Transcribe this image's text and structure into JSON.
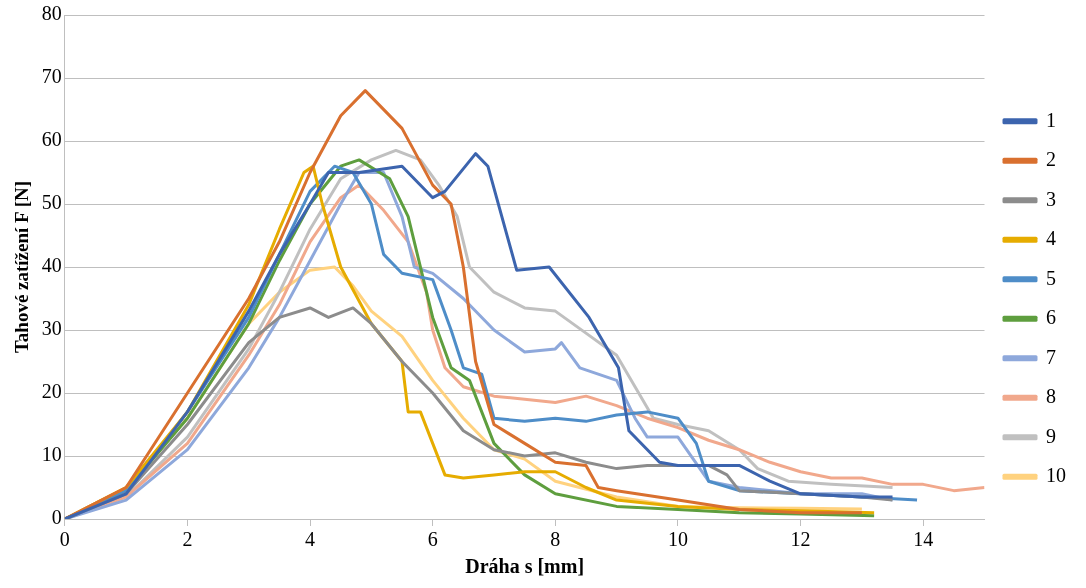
{
  "chart_data": {
    "type": "line",
    "xlabel": "Dráha s [mm]",
    "ylabel": "Tahové zatížení F [N]",
    "xlim": [
      0,
      15
    ],
    "xticks": [
      0,
      2,
      4,
      6,
      8,
      10,
      12,
      14
    ],
    "ylim": [
      0,
      80
    ],
    "yticks": [
      0,
      10,
      20,
      30,
      40,
      50,
      60,
      70,
      80
    ],
    "grid": "y",
    "legend": "right",
    "marker": "none",
    "line_style": "solid",
    "series": [
      {
        "name": "1",
        "color": "#3c64ae",
        "x": [
          0,
          1,
          2,
          3,
          3.5,
          4,
          4.3,
          4.8,
          5.5,
          6,
          6.2,
          6.7,
          6.9,
          7.37,
          7.9,
          8.55,
          9.03,
          9.2,
          9.7,
          10,
          10.5,
          11,
          11.5,
          12,
          13,
          13.5
        ],
        "values": [
          0,
          4,
          17,
          33,
          42,
          50,
          55,
          55,
          56,
          51,
          52,
          58,
          56,
          39.5,
          40,
          32,
          24,
          14,
          9,
          8.5,
          8.5,
          8.5,
          6,
          4,
          3.5,
          3.5
        ]
      },
      {
        "name": "2",
        "color": "#d9702f",
        "x": [
          0,
          1,
          2,
          3,
          3.5,
          4,
          4.5,
          4.9,
          5.5,
          6,
          6.3,
          6.5,
          6.7,
          7,
          7.5,
          8,
          8.5,
          8.7,
          9,
          10,
          11,
          12,
          13
        ],
        "values": [
          0,
          5,
          20,
          35,
          44,
          55,
          64,
          68,
          62,
          53,
          50,
          40,
          25,
          15,
          12,
          9,
          8.5,
          5,
          4.5,
          3,
          1.5,
          1,
          1
        ]
      },
      {
        "name": "3",
        "color": "#8c8c8c",
        "x": [
          0,
          1,
          2,
          3,
          3.5,
          4,
          4.3,
          4.7,
          5,
          5.5,
          6,
          6.5,
          7,
          7.5,
          8,
          8.5,
          9,
          9.5,
          10,
          10.5,
          10.8,
          11,
          12,
          13,
          13.5
        ],
        "values": [
          0,
          4,
          15,
          28,
          32,
          33.5,
          32,
          33.5,
          31,
          25,
          20,
          14,
          11,
          10,
          10.5,
          9,
          8,
          8.5,
          8.5,
          8.5,
          7,
          4.5,
          4,
          3.5,
          3
        ]
      },
      {
        "name": "4",
        "color": "#e6ac00",
        "x": [
          0,
          1,
          2,
          3,
          3.5,
          3.9,
          4.05,
          4.2,
          4.5,
          5,
          5.5,
          5.6,
          5.8,
          6,
          6.2,
          6.5,
          7,
          7.5,
          8,
          8.5,
          9,
          10,
          11,
          12,
          13.2
        ],
        "values": [
          0,
          5,
          17,
          34,
          46,
          55,
          56,
          50,
          40,
          31,
          25,
          17,
          17,
          12,
          7,
          6.5,
          7,
          7.5,
          7.5,
          5,
          3,
          2,
          1.5,
          1.3,
          1
        ]
      },
      {
        "name": "5",
        "color": "#4e8dc8",
        "x": [
          0,
          1,
          2,
          3,
          3.5,
          4,
          4.4,
          4.7,
          5,
          5.2,
          5.5,
          6,
          6.3,
          6.5,
          6.8,
          7,
          7.5,
          8,
          8.5,
          9,
          9.5,
          10,
          10.3,
          10.5,
          11,
          12,
          13,
          13.9
        ],
        "values": [
          0,
          4.5,
          17,
          32,
          42,
          52,
          56,
          55,
          50,
          42,
          39,
          38,
          30,
          24,
          23,
          16,
          15.5,
          16,
          15.5,
          16.5,
          17,
          16,
          12,
          6,
          4.5,
          4,
          3.5,
          3
        ]
      },
      {
        "name": "6",
        "color": "#5e9e3e",
        "x": [
          0,
          1,
          2,
          3,
          3.5,
          4,
          4.5,
          4.8,
          5.3,
          5.6,
          6,
          6.3,
          6.6,
          6.8,
          7,
          7.5,
          8,
          9,
          10,
          11,
          12,
          13.2
        ],
        "values": [
          0,
          4.5,
          16,
          31,
          41,
          50,
          56,
          57,
          54,
          48,
          32,
          24,
          22,
          17,
          12,
          7,
          4,
          2,
          1.5,
          1,
          0.8,
          0.5
        ]
      },
      {
        "name": "7",
        "color": "#8ea8db",
        "x": [
          0,
          1,
          2,
          3,
          3.5,
          4,
          4.5,
          4.8,
          5.2,
          5.5,
          5.7,
          6,
          6.5,
          7,
          7.5,
          8,
          8.1,
          8.4,
          9,
          9.3,
          9.5,
          10,
          10.5,
          11,
          12,
          13,
          13.5
        ],
        "values": [
          0,
          3,
          11,
          24,
          32,
          41,
          50,
          55,
          55,
          48,
          40,
          39,
          35,
          30,
          26.5,
          27,
          28,
          24,
          22,
          16,
          13,
          13,
          6,
          5,
          4,
          4,
          3
        ]
      },
      {
        "name": "8",
        "color": "#f1a88c",
        "x": [
          0,
          1,
          2,
          3,
          3.5,
          4,
          4.5,
          4.8,
          5.2,
          5.6,
          5.9,
          6,
          6.2,
          6.5,
          7,
          7.5,
          8,
          8.5,
          9,
          9.5,
          10,
          10.5,
          11,
          11.5,
          12,
          12.5,
          13,
          13.5,
          14,
          14.5,
          15
        ],
        "values": [
          0,
          3.5,
          12,
          26,
          34,
          44,
          51,
          53,
          49,
          44,
          36,
          30,
          24,
          21,
          19.5,
          19,
          18.5,
          19.5,
          18,
          16,
          14.5,
          12.5,
          11,
          9,
          7.5,
          6.5,
          6.5,
          5.5,
          5.5,
          4.5,
          5
        ]
      },
      {
        "name": "9",
        "color": "#c0c0c0",
        "x": [
          0,
          1,
          2,
          3,
          3.5,
          4,
          4.5,
          5,
          5.4,
          5.8,
          6.1,
          6.4,
          6.6,
          7,
          7.5,
          8,
          8.5,
          9,
          9.3,
          9.6,
          10,
          10.5,
          11,
          11.3,
          11.8,
          12.5,
          13.5
        ],
        "values": [
          0,
          3.5,
          13,
          27,
          36,
          46,
          54,
          57,
          58.5,
          57,
          53,
          48,
          40,
          36,
          33.5,
          33,
          29.5,
          26,
          21,
          16,
          15,
          14,
          11,
          8,
          6,
          5.5,
          5
        ]
      },
      {
        "name": "10",
        "color": "#ffd27f",
        "x": [
          0,
          1,
          2,
          3,
          3.5,
          4,
          4.4,
          4.7,
          5,
          5.5,
          6,
          6.5,
          7,
          7.5,
          8,
          9,
          10,
          11,
          12,
          13
        ],
        "values": [
          0,
          5,
          16,
          31,
          36,
          39.5,
          40,
          37,
          33,
          29,
          22,
          16,
          11,
          9.5,
          6,
          3.5,
          2,
          1.8,
          1.7,
          1.6
        ]
      }
    ]
  }
}
